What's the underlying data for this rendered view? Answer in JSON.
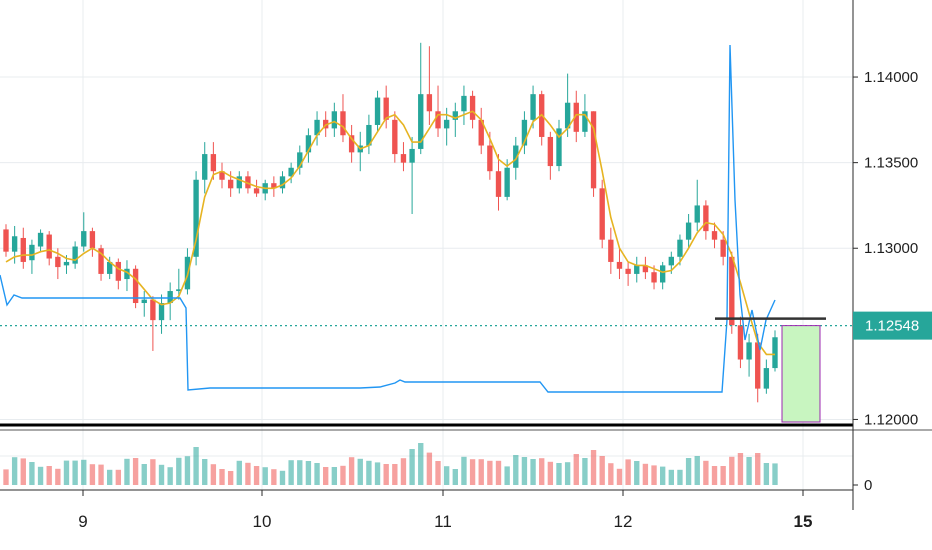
{
  "chart_data": [
    {
      "type": "candlestick",
      "title": "",
      "price_axis": {
        "ylim": [
          1.1195,
          1.1445
        ],
        "ticks": [
          1.14,
          1.135,
          1.13,
          1.12
        ],
        "tick_labels": [
          "1.14000",
          "1.13500",
          "1.13000",
          "1.12000"
        ]
      },
      "time_axis": {
        "ticks": [
          9,
          10,
          11,
          12,
          15
        ],
        "tick_labels": [
          "9",
          "10",
          "11",
          "12",
          "15"
        ],
        "bold_tick": "15"
      },
      "current_price": "1.12548",
      "colors": {
        "up": "#26a69a",
        "down": "#ef5350",
        "ma": "#e6b422",
        "indicator": "#2196f3",
        "price_tag": "#26a69a",
        "target_box": "#c8f5c0",
        "target_box_border": "#9c27b0"
      },
      "candles_ohlc_approx": [
        [
          1.1311,
          1.1314,
          1.1295,
          1.1298
        ],
        [
          1.1298,
          1.1313,
          1.1291,
          1.1307
        ],
        [
          1.1306,
          1.1312,
          1.1288,
          1.1292
        ],
        [
          1.1293,
          1.1305,
          1.1285,
          1.1302
        ],
        [
          1.1301,
          1.1311,
          1.1298,
          1.1309
        ],
        [
          1.1308,
          1.131,
          1.129,
          1.1294
        ],
        [
          1.1295,
          1.13,
          1.1282,
          1.1289
        ],
        [
          1.129,
          1.1296,
          1.1285,
          1.1292
        ],
        [
          1.1291,
          1.1304,
          1.1288,
          1.1301
        ],
        [
          1.1301,
          1.1321,
          1.1298,
          1.131
        ],
        [
          1.131,
          1.1312,
          1.1295,
          1.13
        ],
        [
          1.13,
          1.1302,
          1.1281,
          1.1285
        ],
        [
          1.1285,
          1.1295,
          1.1282,
          1.1292
        ],
        [
          1.1292,
          1.1294,
          1.1276,
          1.1281
        ],
        [
          1.1282,
          1.1293,
          1.1275,
          1.1288
        ],
        [
          1.1288,
          1.129,
          1.1265,
          1.1268
        ],
        [
          1.1268,
          1.1275,
          1.126,
          1.127
        ],
        [
          1.127,
          1.1272,
          1.124,
          1.1258
        ],
        [
          1.1258,
          1.1273,
          1.125,
          1.1268
        ],
        [
          1.1268,
          1.128,
          1.1258,
          1.1275
        ],
        [
          1.1275,
          1.1288,
          1.127,
          1.1276
        ],
        [
          1.1276,
          1.13,
          1.1273,
          1.1295
        ],
        [
          1.1295,
          1.1345,
          1.129,
          1.134
        ],
        [
          1.134,
          1.1362,
          1.1332,
          1.1355
        ],
        [
          1.1355,
          1.1362,
          1.134,
          1.1345
        ],
        [
          1.1345,
          1.135,
          1.1335,
          1.134
        ],
        [
          1.134,
          1.1345,
          1.133,
          1.1335
        ],
        [
          1.1335,
          1.1345,
          1.1332,
          1.1342
        ],
        [
          1.1342,
          1.1345,
          1.1332,
          1.1335
        ],
        [
          1.1335,
          1.134,
          1.133,
          1.1332
        ],
        [
          1.1332,
          1.134,
          1.1328,
          1.1338
        ],
        [
          1.1338,
          1.1342,
          1.133,
          1.1335
        ],
        [
          1.1335,
          1.1345,
          1.1332,
          1.1342
        ],
        [
          1.1342,
          1.135,
          1.1338,
          1.1347
        ],
        [
          1.1347,
          1.136,
          1.1343,
          1.1356
        ],
        [
          1.1356,
          1.137,
          1.135,
          1.1366
        ],
        [
          1.1366,
          1.138,
          1.136,
          1.1375
        ],
        [
          1.1375,
          1.138,
          1.1365,
          1.137
        ],
        [
          1.137,
          1.1385,
          1.1365,
          1.138
        ],
        [
          1.138,
          1.139,
          1.1362,
          1.1366
        ],
        [
          1.1366,
          1.1372,
          1.135,
          1.1356
        ],
        [
          1.1356,
          1.1368,
          1.1345,
          1.136
        ],
        [
          1.136,
          1.1378,
          1.1355,
          1.1372
        ],
        [
          1.1372,
          1.1392,
          1.1368,
          1.1388
        ],
        [
          1.1388,
          1.1395,
          1.137,
          1.1375
        ],
        [
          1.1375,
          1.138,
          1.135,
          1.1355
        ],
        [
          1.1355,
          1.1362,
          1.1345,
          1.135
        ],
        [
          1.135,
          1.1365,
          1.132,
          1.1358
        ],
        [
          1.1358,
          1.142,
          1.1355,
          1.139
        ],
        [
          1.139,
          1.1418,
          1.1372,
          1.138
        ],
        [
          1.138,
          1.1395,
          1.1365,
          1.137
        ],
        [
          1.137,
          1.1382,
          1.136,
          1.1375
        ],
        [
          1.1375,
          1.1385,
          1.1365,
          1.138
        ],
        [
          1.138,
          1.1395,
          1.1372,
          1.1389
        ],
        [
          1.1389,
          1.1392,
          1.137,
          1.1375
        ],
        [
          1.1375,
          1.1382,
          1.1355,
          1.136
        ],
        [
          1.136,
          1.1368,
          1.134,
          1.1345
        ],
        [
          1.1345,
          1.1355,
          1.1322,
          1.133
        ],
        [
          1.133,
          1.1352,
          1.1328,
          1.1347
        ],
        [
          1.1347,
          1.1365,
          1.134,
          1.136
        ],
        [
          1.136,
          1.138,
          1.1355,
          1.1375
        ],
        [
          1.1375,
          1.1395,
          1.137,
          1.139
        ],
        [
          1.139,
          1.1392,
          1.136,
          1.1365
        ],
        [
          1.1365,
          1.1368,
          1.134,
          1.1348
        ],
        [
          1.1348,
          1.1375,
          1.1345,
          1.137
        ],
        [
          1.137,
          1.1402,
          1.1365,
          1.1385
        ],
        [
          1.1385,
          1.1392,
          1.1362,
          1.1368
        ],
        [
          1.1368,
          1.139,
          1.1365,
          1.138
        ],
        [
          1.138,
          1.138,
          1.133,
          1.1335
        ],
        [
          1.1335,
          1.134,
          1.13,
          1.1305
        ],
        [
          1.1305,
          1.1312,
          1.1285,
          1.1292
        ],
        [
          1.1292,
          1.13,
          1.1282,
          1.1288
        ],
        [
          1.1288,
          1.1292,
          1.1278,
          1.1285
        ],
        [
          1.1285,
          1.1295,
          1.128,
          1.129
        ],
        [
          1.129,
          1.1295,
          1.1282,
          1.1286
        ],
        [
          1.1286,
          1.129,
          1.1276,
          1.128
        ],
        [
          1.128,
          1.1292,
          1.1276,
          1.129
        ],
        [
          1.129,
          1.1298,
          1.1285,
          1.1295
        ],
        [
          1.1295,
          1.1308,
          1.129,
          1.1305
        ],
        [
          1.1305,
          1.132,
          1.13,
          1.1315
        ],
        [
          1.1315,
          1.134,
          1.131,
          1.1325
        ],
        [
          1.1325,
          1.1328,
          1.1305,
          1.131
        ],
        [
          1.131,
          1.1315,
          1.13,
          1.1305
        ],
        [
          1.1305,
          1.131,
          1.129,
          1.1295
        ],
        [
          1.1295,
          1.1298,
          1.125,
          1.1255
        ],
        [
          1.1255,
          1.126,
          1.123,
          1.1235
        ],
        [
          1.1235,
          1.125,
          1.1225,
          1.1245
        ],
        [
          1.1245,
          1.125,
          1.121,
          1.1218
        ],
        [
          1.1218,
          1.1235,
          1.1215,
          1.123
        ],
        [
          1.123,
          1.1252,
          1.1228,
          1.1248
        ]
      ],
      "moving_average_approx": [
        1.1292,
        1.1295,
        1.1296,
        1.1296,
        1.1298,
        1.1299,
        1.1297,
        1.1294,
        1.1293,
        1.1297,
        1.13,
        1.1297,
        1.1292,
        1.1288,
        1.1286,
        1.1282,
        1.1276,
        1.127,
        1.1267,
        1.1268,
        1.1272,
        1.1284,
        1.1305,
        1.133,
        1.1343,
        1.1345,
        1.1342,
        1.134,
        1.1338,
        1.1336,
        1.1335,
        1.1335,
        1.1337,
        1.1341,
        1.1348,
        1.1357,
        1.1366,
        1.1372,
        1.1374,
        1.1371,
        1.1364,
        1.1358,
        1.136,
        1.1368,
        1.1376,
        1.1378,
        1.1372,
        1.1362,
        1.1362,
        1.137,
        1.1378,
        1.1378,
        1.1376,
        1.1378,
        1.138,
        1.1375,
        1.1364,
        1.1352,
        1.1348,
        1.1352,
        1.1362,
        1.1374,
        1.1378,
        1.1372,
        1.1365,
        1.137,
        1.1378,
        1.1378,
        1.137,
        1.1345,
        1.1318,
        1.13,
        1.1292,
        1.129,
        1.129,
        1.1288,
        1.1286,
        1.1287,
        1.1292,
        1.13,
        1.1309,
        1.1315,
        1.1314,
        1.1308,
        1.1296,
        1.128,
        1.1262,
        1.1245,
        1.1238,
        1.1238
      ],
      "volume_axis": {
        "ticks": [
          0
        ],
        "tick_labels": [
          "0"
        ]
      }
    }
  ]
}
